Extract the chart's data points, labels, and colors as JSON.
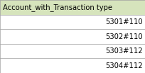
{
  "header": "Account_with_Transaction type",
  "rows": [
    "5301#110",
    "5302#110",
    "5303#112",
    "5304#112"
  ],
  "header_bg": "#d6e4bc",
  "row_bg": "#ffffff",
  "header_text_color": "#000000",
  "row_text_color": "#000000",
  "border_color": "#a0a0a0",
  "header_font_size": 7.2,
  "row_font_size": 7.2,
  "fig_width": 2.05,
  "fig_height": 1.03
}
